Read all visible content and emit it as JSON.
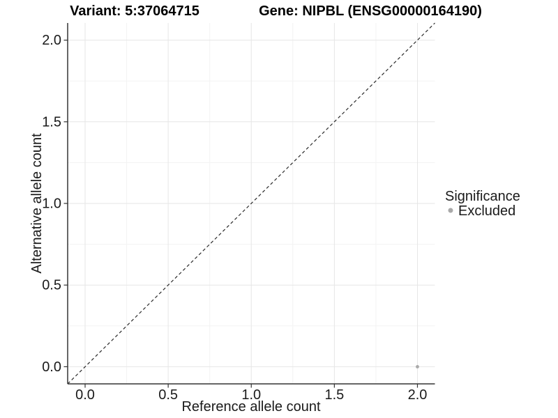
{
  "colors": {
    "background": "#ffffff",
    "grid_major": "#e6e6e6",
    "grid_minor": "#f3f3f3",
    "axis_line": "#333333",
    "tick_mark": "#333333",
    "text": "#1a1a1a",
    "excluded_gray": "#a9a9a9"
  },
  "chart_data": {
    "type": "scatter",
    "titles": {
      "left": "Variant: 5:37064715",
      "right": "Gene: NIPBL (ENSG00000164190)"
    },
    "xlabel": "Reference allele count",
    "ylabel": "Alternative allele count",
    "xlim": [
      -0.105,
      2.105
    ],
    "ylim": [
      -0.105,
      2.105
    ],
    "x_ticks": [
      0.0,
      0.5,
      1.0,
      1.5,
      2.0
    ],
    "x_tick_labels": [
      "0.0",
      "0.5",
      "1.0",
      "1.5",
      "2.0"
    ],
    "y_ticks": [
      0.0,
      0.5,
      1.0,
      1.5,
      2.0
    ],
    "y_tick_labels": [
      "0.0",
      "0.5",
      "1.0",
      "1.5",
      "2.0"
    ],
    "minor_ticks": [
      0.25,
      0.75,
      1.25,
      1.75
    ],
    "grid": {
      "major": true,
      "minor": true
    },
    "reference_line": {
      "type": "identity",
      "style": "dashed",
      "color": "#2a2a2a",
      "from": [
        -0.105,
        -0.105
      ],
      "to": [
        2.105,
        2.105
      ]
    },
    "series": [
      {
        "name": "Excluded",
        "color": "#a9a9a9",
        "points": [
          [
            2.0,
            0.0
          ]
        ]
      }
    ],
    "legend": {
      "title": "Significance",
      "position": "right",
      "items": [
        {
          "label": "Excluded",
          "color": "#a9a9a9"
        }
      ]
    }
  }
}
